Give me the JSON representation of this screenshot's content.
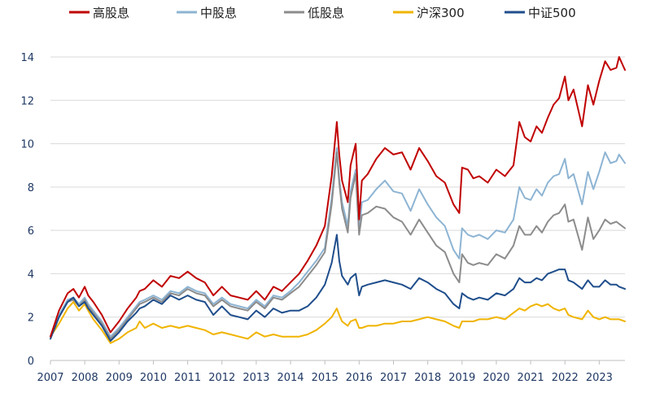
{
  "chart_data": {
    "type": "line",
    "title": "",
    "xlabel": "",
    "ylabel": "",
    "xlim": [
      2007.0,
      2023.75
    ],
    "ylim": [
      0,
      14
    ],
    "yticks": [
      0,
      2,
      4,
      6,
      8,
      10,
      12,
      14
    ],
    "xticks": [
      "2007",
      "2008",
      "2009",
      "2010",
      "2011",
      "2012",
      "2013",
      "2014",
      "2015",
      "2016",
      "2017",
      "2018",
      "2019",
      "2020",
      "2021",
      "2022",
      "2023"
    ],
    "grid": "horizontal",
    "legend_position": "top",
    "series": [
      {
        "name": "高股息",
        "color": "#c00000",
        "x": [
          2007.0,
          2007.25,
          2007.5,
          2007.67,
          2007.83,
          2008.0,
          2008.1,
          2008.25,
          2008.5,
          2008.75,
          2009.0,
          2009.25,
          2009.5,
          2009.6,
          2009.75,
          2010.0,
          2010.25,
          2010.5,
          2010.75,
          2011.0,
          2011.25,
          2011.5,
          2011.75,
          2012.0,
          2012.25,
          2012.5,
          2012.75,
          2013.0,
          2013.25,
          2013.5,
          2013.75,
          2014.0,
          2014.25,
          2014.5,
          2014.75,
          2015.0,
          2015.2,
          2015.35,
          2015.42,
          2015.5,
          2015.67,
          2015.75,
          2015.9,
          2016.0,
          2016.08,
          2016.25,
          2016.5,
          2016.75,
          2017.0,
          2017.25,
          2017.5,
          2017.75,
          2018.0,
          2018.25,
          2018.5,
          2018.75,
          2018.92,
          2019.0,
          2019.17,
          2019.33,
          2019.5,
          2019.75,
          2020.0,
          2020.25,
          2020.5,
          2020.67,
          2020.83,
          2021.0,
          2021.17,
          2021.33,
          2021.5,
          2021.67,
          2021.83,
          2022.0,
          2022.1,
          2022.25,
          2022.5,
          2022.67,
          2022.83,
          2023.0,
          2023.17,
          2023.33,
          2023.5,
          2023.58,
          2023.75
        ],
        "y": [
          1.1,
          2.3,
          3.1,
          3.3,
          2.9,
          3.4,
          3.0,
          2.7,
          2.1,
          1.3,
          1.8,
          2.4,
          2.9,
          3.2,
          3.3,
          3.7,
          3.4,
          3.9,
          3.8,
          4.1,
          3.8,
          3.6,
          3.0,
          3.4,
          3.0,
          2.9,
          2.8,
          3.2,
          2.8,
          3.4,
          3.2,
          3.6,
          4.0,
          4.6,
          5.3,
          6.2,
          8.5,
          11.0,
          9.5,
          8.3,
          7.3,
          9.0,
          10.0,
          6.5,
          8.3,
          8.6,
          9.3,
          9.8,
          9.5,
          9.6,
          8.8,
          9.8,
          9.2,
          8.5,
          8.2,
          7.2,
          6.8,
          8.9,
          8.8,
          8.4,
          8.5,
          8.2,
          8.8,
          8.5,
          9.0,
          11.0,
          10.3,
          10.1,
          10.8,
          10.5,
          11.2,
          11.8,
          12.1,
          13.1,
          12.0,
          12.5,
          10.8,
          12.7,
          11.8,
          12.9,
          13.8,
          13.4,
          13.5,
          14.0,
          13.4
        ]
      },
      {
        "name": "中股息",
        "color": "#8db4d3",
        "x": [
          2007.0,
          2007.25,
          2007.5,
          2007.67,
          2007.83,
          2008.0,
          2008.1,
          2008.25,
          2008.5,
          2008.75,
          2009.0,
          2009.25,
          2009.5,
          2009.6,
          2009.75,
          2010.0,
          2010.25,
          2010.5,
          2010.75,
          2011.0,
          2011.25,
          2011.5,
          2011.75,
          2012.0,
          2012.25,
          2012.5,
          2012.75,
          2013.0,
          2013.25,
          2013.5,
          2013.75,
          2014.0,
          2014.25,
          2014.5,
          2014.75,
          2015.0,
          2015.2,
          2015.35,
          2015.42,
          2015.5,
          2015.67,
          2015.75,
          2015.9,
          2016.0,
          2016.08,
          2016.25,
          2016.5,
          2016.75,
          2017.0,
          2017.25,
          2017.5,
          2017.75,
          2018.0,
          2018.25,
          2018.5,
          2018.75,
          2018.92,
          2019.0,
          2019.17,
          2019.33,
          2019.5,
          2019.75,
          2020.0,
          2020.25,
          2020.5,
          2020.67,
          2020.83,
          2021.0,
          2021.17,
          2021.33,
          2021.5,
          2021.67,
          2021.83,
          2022.0,
          2022.1,
          2022.25,
          2022.5,
          2022.67,
          2022.83,
          2023.0,
          2023.17,
          2023.33,
          2023.5,
          2023.58,
          2023.75
        ],
        "y": [
          1.1,
          2.1,
          2.8,
          2.9,
          2.6,
          2.9,
          2.6,
          2.3,
          1.8,
          1.1,
          1.5,
          2.0,
          2.5,
          2.7,
          2.8,
          3.0,
          2.8,
          3.2,
          3.1,
          3.4,
          3.2,
          3.1,
          2.6,
          2.9,
          2.6,
          2.5,
          2.4,
          2.8,
          2.5,
          3.0,
          2.9,
          3.2,
          3.6,
          4.1,
          4.6,
          5.2,
          7.5,
          9.8,
          8.4,
          7.3,
          6.2,
          7.8,
          8.8,
          5.9,
          7.3,
          7.4,
          7.9,
          8.3,
          7.8,
          7.7,
          6.9,
          7.9,
          7.2,
          6.6,
          6.2,
          5.1,
          4.7,
          6.1,
          5.8,
          5.7,
          5.8,
          5.6,
          6.0,
          5.9,
          6.5,
          8.0,
          7.5,
          7.4,
          7.9,
          7.6,
          8.2,
          8.5,
          8.6,
          9.3,
          8.4,
          8.6,
          7.2,
          8.7,
          7.9,
          8.7,
          9.6,
          9.1,
          9.2,
          9.5,
          9.1
        ]
      },
      {
        "name": "低股息",
        "color": "#8c8c8c",
        "x": [
          2007.0,
          2007.25,
          2007.5,
          2007.67,
          2007.83,
          2008.0,
          2008.1,
          2008.25,
          2008.5,
          2008.75,
          2009.0,
          2009.25,
          2009.5,
          2009.6,
          2009.75,
          2010.0,
          2010.25,
          2010.5,
          2010.75,
          2011.0,
          2011.25,
          2011.5,
          2011.75,
          2012.0,
          2012.25,
          2012.5,
          2012.75,
          2013.0,
          2013.25,
          2013.5,
          2013.75,
          2014.0,
          2014.25,
          2014.5,
          2014.75,
          2015.0,
          2015.2,
          2015.35,
          2015.42,
          2015.5,
          2015.67,
          2015.75,
          2015.9,
          2016.0,
          2016.08,
          2016.25,
          2016.5,
          2016.75,
          2017.0,
          2017.25,
          2017.5,
          2017.75,
          2018.0,
          2018.25,
          2018.5,
          2018.75,
          2018.92,
          2019.0,
          2019.17,
          2019.33,
          2019.5,
          2019.75,
          2020.0,
          2020.25,
          2020.5,
          2020.67,
          2020.83,
          2021.0,
          2021.17,
          2021.33,
          2021.5,
          2021.67,
          2021.83,
          2022.0,
          2022.1,
          2022.25,
          2022.5,
          2022.67,
          2022.83,
          2023.0,
          2023.17,
          2023.33,
          2023.5,
          2023.58,
          2023.75
        ],
        "y": [
          1.1,
          2.0,
          2.7,
          2.8,
          2.5,
          2.8,
          2.5,
          2.2,
          1.7,
          1.0,
          1.4,
          1.9,
          2.4,
          2.6,
          2.7,
          2.9,
          2.7,
          3.1,
          3.0,
          3.3,
          3.1,
          3.0,
          2.5,
          2.8,
          2.5,
          2.4,
          2.3,
          2.7,
          2.4,
          2.9,
          2.8,
          3.1,
          3.4,
          3.9,
          4.4,
          5.0,
          7.2,
          9.6,
          8.2,
          7.0,
          5.9,
          7.5,
          8.6,
          5.8,
          6.7,
          6.8,
          7.1,
          7.0,
          6.6,
          6.4,
          5.8,
          6.5,
          5.9,
          5.3,
          5.0,
          4.0,
          3.6,
          4.9,
          4.5,
          4.4,
          4.5,
          4.4,
          4.9,
          4.7,
          5.3,
          6.2,
          5.8,
          5.8,
          6.2,
          5.9,
          6.4,
          6.7,
          6.8,
          7.2,
          6.4,
          6.5,
          5.1,
          6.6,
          5.6,
          6.0,
          6.5,
          6.3,
          6.4,
          6.3,
          6.1
        ]
      },
      {
        "name": "沪深300",
        "color": "#f0b400",
        "x": [
          2007.0,
          2007.25,
          2007.5,
          2007.67,
          2007.83,
          2008.0,
          2008.1,
          2008.25,
          2008.5,
          2008.75,
          2009.0,
          2009.25,
          2009.5,
          2009.6,
          2009.75,
          2010.0,
          2010.25,
          2010.5,
          2010.75,
          2011.0,
          2011.25,
          2011.5,
          2011.75,
          2012.0,
          2012.25,
          2012.5,
          2012.75,
          2013.0,
          2013.25,
          2013.5,
          2013.75,
          2014.0,
          2014.25,
          2014.5,
          2014.75,
          2015.0,
          2015.2,
          2015.35,
          2015.42,
          2015.5,
          2015.67,
          2015.75,
          2015.9,
          2016.0,
          2016.08,
          2016.25,
          2016.5,
          2016.75,
          2017.0,
          2017.25,
          2017.5,
          2017.75,
          2018.0,
          2018.25,
          2018.5,
          2018.75,
          2018.92,
          2019.0,
          2019.17,
          2019.33,
          2019.5,
          2019.75,
          2020.0,
          2020.25,
          2020.5,
          2020.67,
          2020.83,
          2021.0,
          2021.17,
          2021.33,
          2021.5,
          2021.67,
          2021.83,
          2022.0,
          2022.1,
          2022.25,
          2022.5,
          2022.67,
          2022.83,
          2023.0,
          2023.17,
          2023.33,
          2023.5,
          2023.58,
          2023.75
        ],
        "y": [
          1.1,
          1.7,
          2.4,
          2.7,
          2.3,
          2.6,
          2.3,
          1.9,
          1.4,
          0.8,
          1.0,
          1.3,
          1.5,
          1.8,
          1.5,
          1.7,
          1.5,
          1.6,
          1.5,
          1.6,
          1.5,
          1.4,
          1.2,
          1.3,
          1.2,
          1.1,
          1.0,
          1.3,
          1.1,
          1.2,
          1.1,
          1.1,
          1.1,
          1.2,
          1.4,
          1.7,
          2.0,
          2.4,
          2.1,
          1.8,
          1.6,
          1.8,
          1.9,
          1.5,
          1.5,
          1.6,
          1.6,
          1.7,
          1.7,
          1.8,
          1.8,
          1.9,
          2.0,
          1.9,
          1.8,
          1.6,
          1.5,
          1.8,
          1.8,
          1.8,
          1.9,
          1.9,
          2.0,
          1.9,
          2.2,
          2.4,
          2.3,
          2.5,
          2.6,
          2.5,
          2.6,
          2.4,
          2.3,
          2.4,
          2.1,
          2.0,
          1.9,
          2.3,
          2.0,
          1.9,
          2.0,
          1.9,
          1.9,
          1.9,
          1.8
        ]
      },
      {
        "name": "中证500",
        "color": "#1f4e8c",
        "x": [
          2007.0,
          2007.25,
          2007.5,
          2007.67,
          2007.83,
          2008.0,
          2008.1,
          2008.25,
          2008.5,
          2008.75,
          2009.0,
          2009.25,
          2009.5,
          2009.6,
          2009.75,
          2010.0,
          2010.25,
          2010.5,
          2010.75,
          2011.0,
          2011.25,
          2011.5,
          2011.75,
          2012.0,
          2012.25,
          2012.5,
          2012.75,
          2013.0,
          2013.25,
          2013.5,
          2013.75,
          2014.0,
          2014.25,
          2014.5,
          2014.75,
          2015.0,
          2015.2,
          2015.35,
          2015.42,
          2015.5,
          2015.67,
          2015.75,
          2015.9,
          2016.0,
          2016.08,
          2016.25,
          2016.5,
          2016.75,
          2017.0,
          2017.25,
          2017.5,
          2017.75,
          2018.0,
          2018.25,
          2018.5,
          2018.75,
          2018.92,
          2019.0,
          2019.17,
          2019.33,
          2019.5,
          2019.75,
          2020.0,
          2020.25,
          2020.5,
          2020.67,
          2020.83,
          2021.0,
          2021.17,
          2021.33,
          2021.5,
          2021.67,
          2021.83,
          2022.0,
          2022.1,
          2022.25,
          2022.5,
          2022.67,
          2022.83,
          2023.0,
          2023.17,
          2023.33,
          2023.5,
          2023.58,
          2023.75
        ],
        "y": [
          1.0,
          2.0,
          2.7,
          2.9,
          2.5,
          2.7,
          2.4,
          2.1,
          1.6,
          0.9,
          1.3,
          1.8,
          2.2,
          2.4,
          2.5,
          2.8,
          2.6,
          3.0,
          2.8,
          3.0,
          2.8,
          2.7,
          2.1,
          2.5,
          2.1,
          2.0,
          1.9,
          2.3,
          2.0,
          2.4,
          2.2,
          2.3,
          2.3,
          2.5,
          2.9,
          3.5,
          4.5,
          5.8,
          4.6,
          3.9,
          3.5,
          3.8,
          4.0,
          3.0,
          3.4,
          3.5,
          3.6,
          3.7,
          3.6,
          3.5,
          3.3,
          3.8,
          3.6,
          3.3,
          3.1,
          2.6,
          2.4,
          3.1,
          2.9,
          2.8,
          2.9,
          2.8,
          3.1,
          3.0,
          3.3,
          3.8,
          3.6,
          3.6,
          3.8,
          3.7,
          4.0,
          4.1,
          4.2,
          4.2,
          3.7,
          3.6,
          3.3,
          3.7,
          3.4,
          3.4,
          3.7,
          3.5,
          3.5,
          3.4,
          3.3
        ]
      }
    ]
  }
}
